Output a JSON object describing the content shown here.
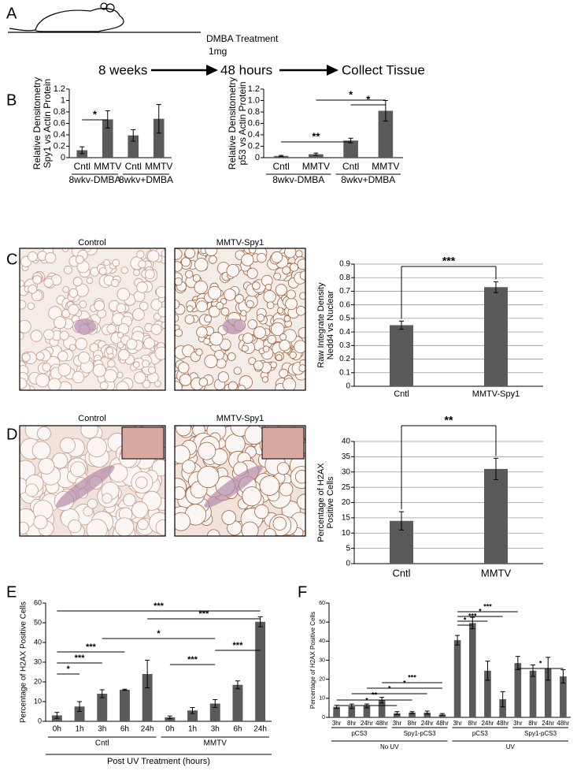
{
  "panel_labels": [
    "A",
    "B",
    "C",
    "D",
    "E",
    "F"
  ],
  "diagram": {
    "treatment": "DMBA Treatment",
    "dose": "1mg",
    "steps": [
      "8 weeks",
      "48 hours",
      "Collect Tissue"
    ]
  },
  "micrographs": {
    "C": [
      "Control",
      "MMTV-Spy1"
    ],
    "D": [
      "Control",
      "MMTV-Spy1"
    ]
  },
  "chart_data": [
    {
      "type": "bar",
      "ylabel": [
        "Relative Densitometry",
        "Spy1 vs Actin Protein"
      ],
      "categories": [
        "Cntl",
        "MMTV",
        "Cntl",
        "MMTV"
      ],
      "groups": [
        "8wkv-DMBA",
        "8wkv+DMBA"
      ],
      "values": [
        0.13,
        0.67,
        0.39,
        0.68
      ],
      "errors": [
        0.06,
        0.15,
        0.1,
        0.25
      ],
      "color": "#5a5a5a",
      "ylim": [
        0,
        1.2
      ],
      "yticks": [
        0,
        0.2,
        0.4,
        0.6,
        0.8,
        1,
        1.2
      ],
      "grid": false,
      "annotations": [
        "*"
      ]
    },
    {
      "type": "bar",
      "ylabel": [
        "Relative Densitometry",
        "p53 vs Actin Protein"
      ],
      "categories": [
        "Cntl",
        "MMTV",
        "Cntl",
        "MMTV"
      ],
      "groups": [
        "8wkv-DMBA",
        "8wkv+DMBA"
      ],
      "values": [
        0.03,
        0.06,
        0.3,
        0.82
      ],
      "errors": [
        0.01,
        0.02,
        0.04,
        0.18
      ],
      "color": "#5a5a5a",
      "ylim": [
        0,
        1.2
      ],
      "yticks": [
        0,
        0.2,
        0.4,
        0.6,
        0.8,
        {
          "value": 1,
          "label": "1.0"
        },
        1.2
      ],
      "grid": false,
      "annotations": [
        "**",
        "*",
        "*"
      ]
    },
    {
      "type": "bar",
      "ylabel": [
        "Raw Integrate Density",
        "Nedd4 vs Nuclear"
      ],
      "categories": [
        "Cntl",
        "MMTV-Spy1"
      ],
      "values": [
        0.45,
        0.73
      ],
      "errors": [
        0.03,
        0.04
      ],
      "color": "#5a5a5a",
      "ylim": [
        0,
        0.9
      ],
      "yticks": [
        0,
        0.1,
        0.2,
        0.3,
        0.4,
        0.5,
        0.6,
        0.7,
        0.8,
        0.9
      ],
      "grid": true,
      "annotations": [
        "***"
      ]
    },
    {
      "type": "bar",
      "ylabel": [
        "Percentage of H2AX",
        "Positive Cells"
      ],
      "categories": [
        "Cntl",
        "MMTV"
      ],
      "values": [
        14,
        31
      ],
      "errors": [
        3,
        3.5
      ],
      "color": "#5a5a5a",
      "ylim": [
        0,
        40
      ],
      "yticks": [
        0,
        5,
        10,
        15,
        20,
        25,
        30,
        35,
        40
      ],
      "grid": true,
      "annotations": [
        "**"
      ]
    },
    {
      "type": "bar",
      "ylabel": [
        "Percentage of H2AX Positive Cells"
      ],
      "xlabel": "Post UV Treatment (hours)",
      "categories": [
        "0h",
        "1h",
        "3h",
        "6h",
        "24h",
        "0h",
        "1h",
        "3h",
        "6h",
        "24h"
      ],
      "groups": [
        "Cntl",
        "MMTV"
      ],
      "values": [
        3,
        7.5,
        14,
        16,
        24,
        2,
        5.5,
        9,
        18.5,
        50.5
      ],
      "errors": [
        1.5,
        2.5,
        2,
        0.3,
        7,
        0.7,
        1.5,
        2,
        2,
        2.5
      ],
      "color": "#5a5a5a",
      "ylim": [
        0,
        60
      ],
      "yticks": [
        0,
        10,
        20,
        30,
        40,
        50,
        60
      ],
      "grid": false,
      "annotations": [
        "*",
        "***",
        "***",
        "***",
        "***",
        "*",
        "***",
        "***"
      ]
    },
    {
      "type": "bar",
      "ylabel": [
        "Percentage of H2AX Positive Cells"
      ],
      "categories": [
        "3hr",
        "8hr",
        "24hr",
        "48hr",
        "3hr",
        "8hr",
        "24hr",
        "48hr",
        "3hr",
        "8hr",
        "24hr",
        "48hr",
        "3hr",
        "8hr",
        "24hr",
        "48hr"
      ],
      "groups": [
        "pCS3",
        "Spy1-pCS3",
        "pCS3",
        "Spy1-pCS3"
      ],
      "supergroups": [
        "No UV",
        "UV"
      ],
      "values": [
        5.5,
        5.8,
        6,
        9,
        2.2,
        2.5,
        2.5,
        1.5,
        40.5,
        49.5,
        24.5,
        9.5,
        28.5,
        24.5,
        25.5,
        21.5
      ],
      "errors": [
        0.8,
        1.2,
        1,
        1.5,
        0.8,
        0.5,
        0.8,
        0.5,
        2.5,
        3,
        5,
        4,
        3.5,
        3,
        6,
        3.5
      ],
      "color": "#5a5a5a",
      "ylim": [
        0,
        60
      ],
      "yticks": [
        0,
        10,
        20,
        30,
        40,
        50,
        60
      ],
      "grid": false,
      "annotations": [
        "*",
        "**",
        "*",
        "*",
        "***",
        "*",
        "***",
        "*",
        "***",
        "*"
      ]
    }
  ]
}
